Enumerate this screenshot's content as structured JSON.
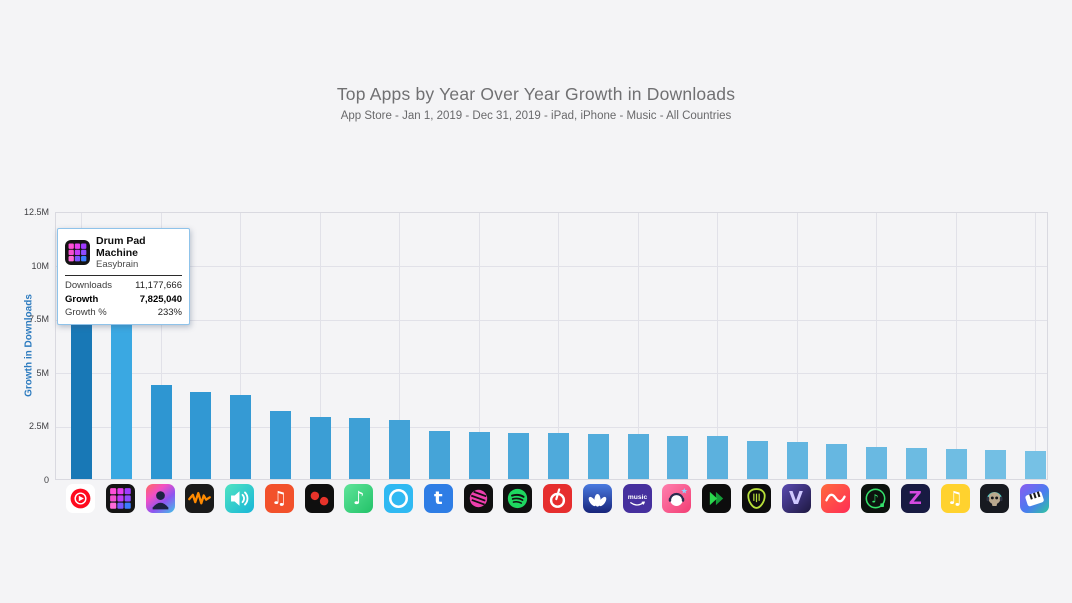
{
  "header": {
    "title": "Top Apps by Year Over Year Growth in Downloads",
    "subtitle": "App Store - Jan 1, 2019 - Dec 31, 2019 - iPad, iPhone - Music - All Countries"
  },
  "chart_data": {
    "type": "bar",
    "title": "Top Apps by Year Over Year Growth in Downloads",
    "xlabel": "",
    "ylabel": "Growth in Downloads",
    "ylim": [
      0,
      12500000
    ],
    "y_ticks": [
      "12.5M",
      "10M",
      "7.5M",
      "5M",
      "2.5M",
      "0"
    ],
    "grid": true,
    "legend": "none",
    "categories": [
      "YouTube Music",
      "Drum Pad Machine",
      "Music App (rainbow character)",
      "Audiomack",
      "Music App (teal speaker)",
      "Music App (orange notes)",
      "Music App (red swirl)",
      "Music App (green note)",
      "Amazon Alexa",
      "Music App (blue letter t)",
      "Music App (magenta sphere)",
      "Spotify",
      "NetEase Cloud Music",
      "Music App (blue lotus)",
      "Amazon Music",
      "Music App (pink headphones)",
      "Music App (green play)",
      "Music App (guitar pick)",
      "Music App (purple V)",
      "Music App (red wave)",
      "Music App (green note circle)",
      "Music App (purple Z)",
      "Music App (yellow notes)",
      "Music App (skull headphones)",
      "Music App (piano)"
    ],
    "values": [
      11200000,
      7825040,
      4400000,
      4050000,
      3900000,
      3150000,
      2900000,
      2850000,
      2750000,
      2250000,
      2200000,
      2150000,
      2150000,
      2100000,
      2100000,
      2000000,
      2000000,
      1750000,
      1720000,
      1630000,
      1500000,
      1450000,
      1400000,
      1350000,
      1300000
    ],
    "hovered_index": 1
  },
  "apps": [
    {
      "icon": "youtube-music-icon",
      "glyph": "yt",
      "bg": "#ffffff"
    },
    {
      "icon": "drum-pad-machine-icon",
      "glyph": "drumpad",
      "bg": "#141414"
    },
    {
      "icon": "rainbow-character-icon",
      "glyph": "rainbowchar",
      "bg": "linear-gradient(140deg,#ff6a5e 0%,#f14fc4 32%,#8e54f0 62%,#3ec6e8 100%)"
    },
    {
      "icon": "audiomack-icon",
      "glyph": "zigzag",
      "bg": "#1a1a1a",
      "fg": "#ff8a00"
    },
    {
      "icon": "teal-speaker-icon",
      "glyph": "speaker",
      "bg": "linear-gradient(135deg,#4fe3c1,#18b6d8)",
      "fg": "#ffffff"
    },
    {
      "icon": "orange-music-notes-icon",
      "glyph": "char",
      "ch": "♫",
      "bg": "#f2512b",
      "fg": "#ffffff"
    },
    {
      "icon": "red-swirl-black-icon",
      "glyph": "swirl2",
      "bg": "#0f0f0f",
      "fg": "#e8332a"
    },
    {
      "icon": "green-music-note-icon",
      "glyph": "char",
      "ch": "♪",
      "bg": "linear-gradient(135deg,#5fe49a,#22c268)",
      "fg": "#ffffff"
    },
    {
      "icon": "amazon-alexa-icon",
      "glyph": "ring",
      "bg": "#2fb9f2",
      "fg": "#ffffff"
    },
    {
      "icon": "blue-letter-t-icon",
      "glyph": "char",
      "ch": "t",
      "bg": "#2e7de5",
      "fg": "#ffffff",
      "bold": true
    },
    {
      "icon": "magenta-sphere-icon",
      "glyph": "sphere",
      "bg": "#101010",
      "fg": "#ee3fae"
    },
    {
      "icon": "spotify-icon",
      "glyph": "spotify",
      "bg": "#101010",
      "fg": "#1ed760"
    },
    {
      "icon": "netease-cloud-music-icon",
      "glyph": "netease",
      "bg": "#e62e2e",
      "fg": "#ffffff"
    },
    {
      "icon": "blue-lotus-icon",
      "glyph": "lotus",
      "bg": "linear-gradient(180deg,#4a7ae0,#17247a)",
      "fg": "#ffffff"
    },
    {
      "icon": "amazon-music-icon",
      "glyph": "amazonmusic",
      "bg": "#46309e",
      "fg": "#ffffff"
    },
    {
      "icon": "pink-headphones-character-icon",
      "glyph": "headchar",
      "bg": "linear-gradient(135deg,#ff7fae,#f23e74)",
      "fg": "#ffffff"
    },
    {
      "icon": "green-play-icon",
      "glyph": "play2",
      "bg": "#0d0d0d",
      "fg": "#2bd84e"
    },
    {
      "icon": "guitar-pick-icon",
      "glyph": "pick",
      "bg": "#0d0d0d",
      "fg": "#b8e03a"
    },
    {
      "icon": "purple-letter-v-icon",
      "glyph": "char",
      "ch": "V",
      "bg": "linear-gradient(135deg,#5a4ab2,#1d1840)",
      "fg": "#cfc8ff",
      "bold": true
    },
    {
      "icon": "red-wave-icon",
      "glyph": "sine",
      "bg": "linear-gradient(135deg,#ff6a3d,#ff2d55)",
      "fg": "#ffffff"
    },
    {
      "icon": "green-note-circle-icon",
      "glyph": "notecircle",
      "bg": "#0c120e",
      "fg": "#35e06a"
    },
    {
      "icon": "purple-letter-z-icon",
      "glyph": "char",
      "ch": "Z",
      "bg": "#181b42",
      "fg": "#d44ae0",
      "bold": true
    },
    {
      "icon": "yellow-music-notes-icon",
      "glyph": "char",
      "ch": "♫",
      "bg": "#ffd22e",
      "fg": "#ffffff"
    },
    {
      "icon": "skull-headphones-icon",
      "glyph": "skull",
      "bg": "#171a20",
      "fg": "#b9a98e"
    },
    {
      "icon": "piano-gradient-icon",
      "glyph": "piano",
      "bg": "linear-gradient(135deg,#8a5cf0 0%,#4a7bf0 55%,#2ec89e 100%)",
      "fg": "#ffffff"
    }
  ],
  "tooltip": {
    "app_name": "Drum Pad Machine",
    "publisher": "Easybrain",
    "rows": [
      {
        "label": "Downloads",
        "value": "11,177,666"
      },
      {
        "label": "Growth",
        "value": "7,825,040"
      },
      {
        "label": "Growth %",
        "value": "233%"
      }
    ]
  },
  "colors": {
    "background": "#f4f4f6",
    "plot_border": "#d9d9e0",
    "gridline": "#e1e1e8",
    "y_axis_label": "#2d7bbf",
    "bar_first": "#1878b6",
    "bar_hovered": "#3aa8e2",
    "bar_gradient_start": "#2e96d2",
    "bar_gradient_end": "#76c1e5",
    "tooltip_border": "#8fc3ea",
    "drum_pad_colors": [
      "#ff4fd8",
      "#e83ef0",
      "#a03bff",
      "#f44fd0",
      "#c13bf8",
      "#8e4bff",
      "#ff6ad8",
      "#7a55ff",
      "#3b7bff"
    ]
  }
}
